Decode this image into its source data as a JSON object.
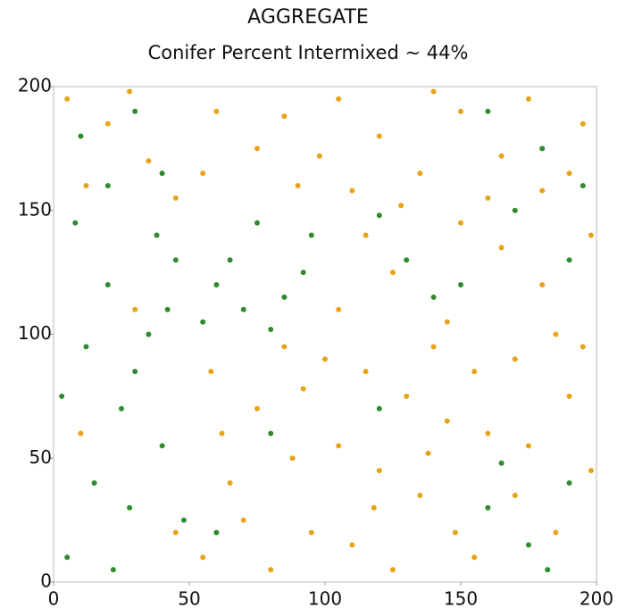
{
  "chart_data": {
    "type": "scatter",
    "title": "AGGREGATE",
    "subtitle": "Conifer Percent Intermixed  ~  44%",
    "xlim": [
      0,
      200
    ],
    "ylim": [
      0,
      200
    ],
    "xticks": [
      0,
      50,
      100,
      150,
      200
    ],
    "yticks": [
      0,
      50,
      100,
      150,
      200
    ],
    "series": [
      {
        "color": "#e8a317",
        "x": [
          5,
          20,
          35,
          45,
          60,
          75,
          90,
          105,
          120,
          135,
          150,
          165,
          180,
          195,
          12,
          55,
          85,
          110,
          140,
          175,
          190,
          28,
          98,
          128,
          160,
          55,
          65,
          75,
          85,
          95,
          105,
          115,
          125,
          135,
          145,
          58,
          70,
          88,
          100,
          110,
          120,
          130,
          140,
          148,
          80,
          62,
          92,
          118,
          138,
          105,
          115,
          125,
          145,
          160,
          170,
          180,
          190,
          198,
          155,
          165,
          185,
          175,
          195,
          150,
          155,
          170,
          185,
          198,
          10,
          30,
          45
        ],
        "y": [
          195,
          185,
          170,
          155,
          190,
          175,
          160,
          195,
          180,
          165,
          190,
          172,
          158,
          185,
          160,
          165,
          188,
          158,
          198,
          195,
          165,
          198,
          172,
          152,
          155,
          10,
          40,
          70,
          95,
          20,
          55,
          85,
          5,
          35,
          65,
          85,
          25,
          50,
          90,
          15,
          45,
          75,
          95,
          20,
          5,
          60,
          78,
          30,
          52,
          110,
          140,
          125,
          105,
          60,
          90,
          120,
          75,
          140,
          85,
          135,
          100,
          55,
          95,
          145,
          10,
          35,
          20,
          45,
          60,
          110,
          20
        ]
      },
      {
        "color": "#2e8b2e",
        "x": [
          5,
          15,
          25,
          35,
          45,
          8,
          20,
          30,
          40,
          48,
          12,
          22,
          38,
          3,
          28,
          42,
          55,
          65,
          75,
          85,
          95,
          60,
          80,
          92,
          70,
          10,
          30,
          40,
          20,
          160,
          180,
          195,
          170,
          130,
          140,
          120,
          150,
          190,
          160,
          175,
          190,
          182,
          165,
          80,
          120,
          60
        ],
        "y": [
          10,
          40,
          70,
          100,
          130,
          145,
          120,
          85,
          55,
          25,
          95,
          5,
          140,
          75,
          30,
          110,
          105,
          130,
          145,
          115,
          140,
          120,
          102,
          125,
          110,
          180,
          190,
          165,
          160,
          190,
          175,
          160,
          150,
          130,
          115,
          148,
          120,
          130,
          30,
          15,
          40,
          5,
          48,
          60,
          70,
          20
        ]
      }
    ]
  }
}
